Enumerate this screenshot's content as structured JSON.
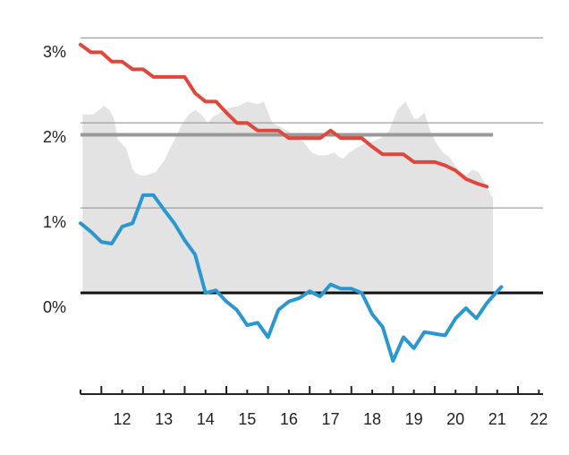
{
  "chart_data": {
    "type": "line",
    "title": "",
    "xlabel": "",
    "ylabel": "",
    "x_ticks": [
      12,
      13,
      14,
      15,
      16,
      17,
      18,
      19,
      20,
      21,
      22
    ],
    "x_tick_labels": [
      "12",
      "13",
      "14",
      "15",
      "16",
      "17",
      "18",
      "19",
      "20",
      "21",
      "22"
    ],
    "xlim": [
      11.5,
      22.6
    ],
    "y_ticks": [
      0,
      1,
      2,
      3
    ],
    "y_tick_labels": [
      "0%",
      "1%",
      "2%",
      "3%"
    ],
    "ylim": [
      -1.0,
      3.15
    ],
    "grid": true,
    "legend": "none",
    "reference_lines": [
      {
        "y": 0,
        "color": "#111111"
      },
      {
        "y": 1.86,
        "x_end": 21.4,
        "color": "#999999"
      }
    ],
    "series": [
      {
        "type": "area",
        "color": "#e3e3e3",
        "x": [
          11.55,
          11.8,
          11.95,
          12.05,
          12.2,
          12.3,
          12.4,
          12.5,
          12.6,
          12.75,
          12.85,
          12.95,
          13.05,
          13.3,
          13.5,
          13.65,
          13.8,
          13.95,
          14.1,
          14.25,
          14.4,
          14.55,
          14.7,
          14.8,
          14.95,
          15.1,
          15.3,
          15.5,
          15.75,
          15.9,
          16.1,
          16.3,
          16.5,
          16.7,
          16.85,
          17.05,
          17.2,
          17.4,
          17.6,
          17.7,
          17.8,
          17.95,
          18.1,
          18.3,
          18.5,
          18.7,
          18.9,
          19.1,
          19.3,
          19.4,
          19.5,
          19.6,
          19.75,
          19.9,
          20.05,
          20.2,
          20.35,
          20.55,
          20.75,
          20.9,
          21.05,
          21.2,
          21.35,
          21.4
        ],
        "y": [
          2.1,
          2.1,
          2.15,
          2.2,
          2.15,
          2.05,
          1.8,
          1.75,
          1.7,
          1.45,
          1.4,
          1.38,
          1.38,
          1.42,
          1.55,
          1.7,
          1.85,
          2.0,
          2.1,
          2.15,
          2.1,
          2.0,
          2.08,
          2.1,
          2.15,
          2.18,
          2.2,
          2.25,
          2.22,
          2.25,
          2.0,
          1.95,
          1.9,
          1.82,
          1.78,
          1.65,
          1.62,
          1.62,
          1.65,
          1.6,
          1.58,
          1.65,
          1.7,
          1.75,
          1.78,
          1.82,
          1.9,
          2.15,
          2.25,
          2.15,
          2.05,
          2.05,
          2.12,
          1.9,
          1.75,
          1.65,
          1.6,
          1.45,
          1.38,
          1.45,
          1.42,
          1.3,
          1.15,
          1.12
        ]
      },
      {
        "type": "line",
        "color": "#e0473c",
        "x": [
          11.5,
          11.75,
          12.0,
          12.25,
          12.5,
          12.75,
          13.0,
          13.25,
          13.5,
          13.75,
          14.0,
          14.25,
          14.5,
          14.75,
          15.0,
          15.25,
          15.5,
          15.75,
          16.0,
          16.25,
          16.5,
          16.75,
          17.0,
          17.25,
          17.5,
          17.75,
          18.0,
          18.25,
          18.5,
          18.75,
          19.0,
          19.25,
          19.5,
          19.75,
          20.0,
          20.25,
          20.5,
          20.75,
          21.0,
          21.25
        ],
        "y": [
          2.92,
          2.83,
          2.83,
          2.72,
          2.72,
          2.63,
          2.63,
          2.54,
          2.54,
          2.54,
          2.54,
          2.35,
          2.25,
          2.25,
          2.12,
          2.0,
          2.0,
          1.91,
          1.91,
          1.91,
          1.82,
          1.82,
          1.82,
          1.82,
          1.91,
          1.82,
          1.82,
          1.82,
          1.72,
          1.63,
          1.63,
          1.63,
          1.54,
          1.54,
          1.54,
          1.5,
          1.44,
          1.34,
          1.29,
          1.25
        ]
      },
      {
        "type": "line",
        "color": "#2b97d1",
        "x": [
          11.5,
          11.75,
          12.0,
          12.25,
          12.5,
          12.75,
          13.0,
          13.25,
          13.5,
          13.75,
          14.0,
          14.25,
          14.5,
          14.75,
          15.0,
          15.25,
          15.5,
          15.75,
          16.0,
          16.25,
          16.5,
          16.75,
          17.0,
          17.25,
          17.5,
          17.75,
          18.0,
          18.25,
          18.5,
          18.75,
          19.0,
          19.25,
          19.5,
          19.75,
          20.0,
          20.25,
          20.5,
          20.75,
          21.0,
          21.25,
          21.5,
          21.6
        ],
        "y": [
          0.82,
          0.72,
          0.6,
          0.58,
          0.78,
          0.82,
          1.15,
          1.15,
          0.98,
          0.82,
          0.62,
          0.45,
          0.0,
          0.03,
          -0.1,
          -0.2,
          -0.38,
          -0.35,
          -0.52,
          -0.2,
          -0.1,
          -0.06,
          0.02,
          -0.04,
          0.1,
          0.05,
          0.05,
          0.0,
          -0.25,
          -0.4,
          -0.8,
          -0.52,
          -0.65,
          -0.46,
          -0.48,
          -0.5,
          -0.3,
          -0.18,
          -0.3,
          -0.12,
          0.02,
          0.07
        ]
      }
    ]
  }
}
